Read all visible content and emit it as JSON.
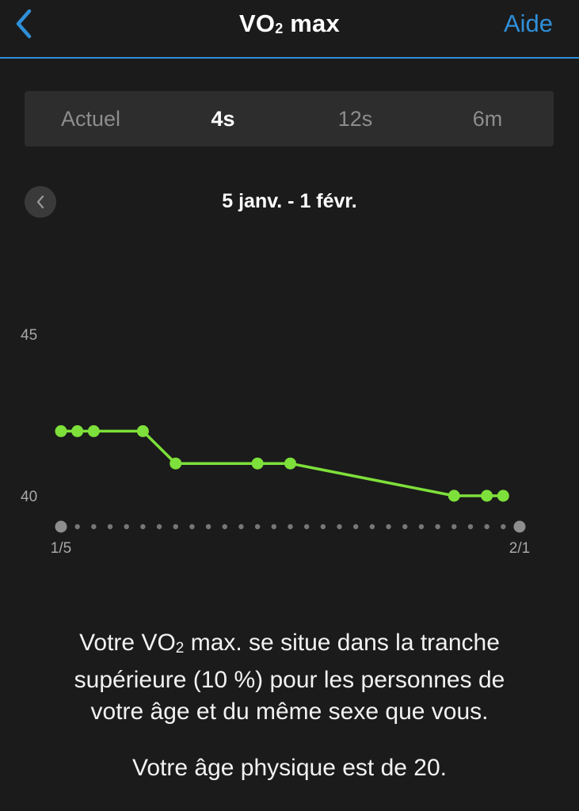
{
  "header": {
    "title_main": "VO",
    "title_sub": "2",
    "title_end": " max",
    "help_label": "Aide"
  },
  "tabs": [
    {
      "label": "Actuel",
      "active": false
    },
    {
      "label": "4s",
      "active": true
    },
    {
      "label": "12s",
      "active": false
    },
    {
      "label": "6m",
      "active": false
    }
  ],
  "date_range": "5 janv. - 1 févr.",
  "chart_data": {
    "type": "line",
    "color": "#7ee03a",
    "x": [
      "2023-01-05",
      "2023-01-06",
      "2023-01-07",
      "2023-01-10",
      "2023-01-12",
      "2023-01-17",
      "2023-01-19",
      "2023-01-29",
      "2023-01-31",
      "2023-02-01"
    ],
    "values": [
      42,
      42,
      42,
      42,
      41,
      41,
      41,
      40,
      40,
      40
    ],
    "y_ticks": [
      "45",
      "40"
    ],
    "ylim": [
      39.05,
      45
    ],
    "x_tick_labels": [
      "1/5",
      "2/1"
    ],
    "x_days": 28
  },
  "message": {
    "line1_a": "Votre VO",
    "line1_sub": "2",
    "line1_b": " max. se situe dans la tranche",
    "line2": "supérieure (10 %) pour les personnes de",
    "line3": "votre âge et du même sexe que vous.",
    "age_text": "Votre âge physique est de 20."
  }
}
